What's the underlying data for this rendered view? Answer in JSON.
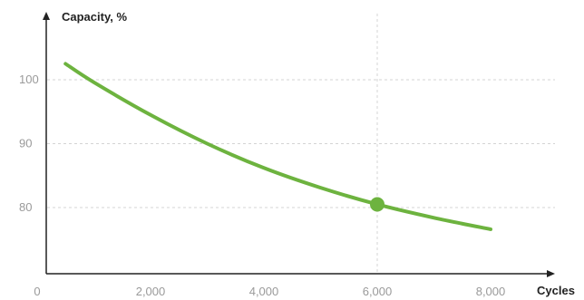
{
  "chart_data": {
    "type": "line",
    "title": "",
    "xlabel": "Cycles",
    "ylabel": "Capacity, %",
    "xlim": [
      0,
      9000
    ],
    "ylim": [
      69,
      112
    ],
    "x_ticks": [
      0,
      2000,
      4000,
      6000,
      8000
    ],
    "x_tick_labels": [
      "0",
      "2,000",
      "4,000",
      "6,000",
      "8,000"
    ],
    "y_ticks": [
      80,
      90,
      100
    ],
    "y_tick_labels": [
      "80",
      "90",
      "100"
    ],
    "grid": "dashed horizontal at y ticks, dashed vertical at highlighted point",
    "series": [
      {
        "color": "#6db33f",
        "x": [
          500,
          1000,
          2000,
          3000,
          4000,
          5000,
          6000,
          7000,
          8000
        ],
        "y": [
          102.5,
          99.6,
          94.5,
          90.0,
          86.2,
          83.1,
          80.5,
          78.4,
          76.6
        ]
      }
    ],
    "highlight_point": {
      "x": 6000,
      "y": 80.5,
      "color": "#6db33f"
    }
  },
  "colors": {
    "axis": "#222222",
    "grid": "#d4d4d4",
    "tick_label": "#9a9a9a",
    "line": "#6db33f"
  }
}
